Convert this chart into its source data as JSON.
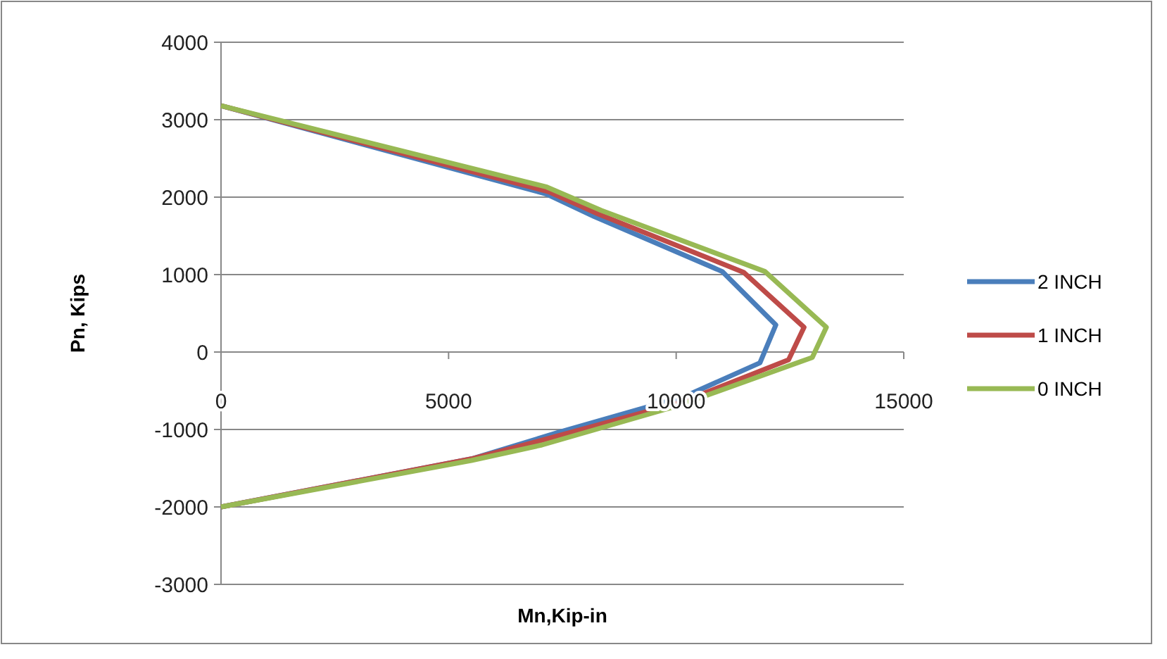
{
  "chart_data": {
    "type": "line",
    "xlabel": "Mn,Kip-in",
    "ylabel": "Pn, Kips",
    "xlim": [
      0,
      15000
    ],
    "xticks": [
      0,
      5000,
      10000,
      15000
    ],
    "ylim": [
      -3000,
      4000
    ],
    "yticks": [
      -3000,
      -2000,
      -1000,
      0,
      1000,
      2000,
      3000,
      4000
    ],
    "grid": "y",
    "legend": "right",
    "marker": "none",
    "line_style": "solid",
    "series": [
      {
        "name": "2 INCH",
        "color": "#4a7ebb",
        "x": [
          0,
          7150,
          8200,
          11010,
          12190,
          11840,
          10200,
          7400,
          5500,
          0
        ],
        "values": [
          3180,
          2040,
          1750,
          1040,
          350,
          -140,
          -570,
          -1040,
          -1380,
          -2000
        ]
      },
      {
        "name": "1 INCH",
        "color": "#be4b48",
        "x": [
          0,
          7200,
          8300,
          11480,
          12810,
          12470,
          10100,
          7300,
          5500,
          0
        ],
        "values": [
          3180,
          2070,
          1780,
          1030,
          320,
          -100,
          -650,
          -1100,
          -1380,
          -2000
        ]
      },
      {
        "name": "0 INCH",
        "color": "#98b954",
        "x": [
          0,
          7160,
          8350,
          11950,
          13300,
          12990,
          10000,
          7050,
          5500,
          0
        ],
        "values": [
          3180,
          2130,
          1830,
          1040,
          320,
          -70,
          -700,
          -1200,
          -1400,
          -2000
        ]
      }
    ]
  }
}
